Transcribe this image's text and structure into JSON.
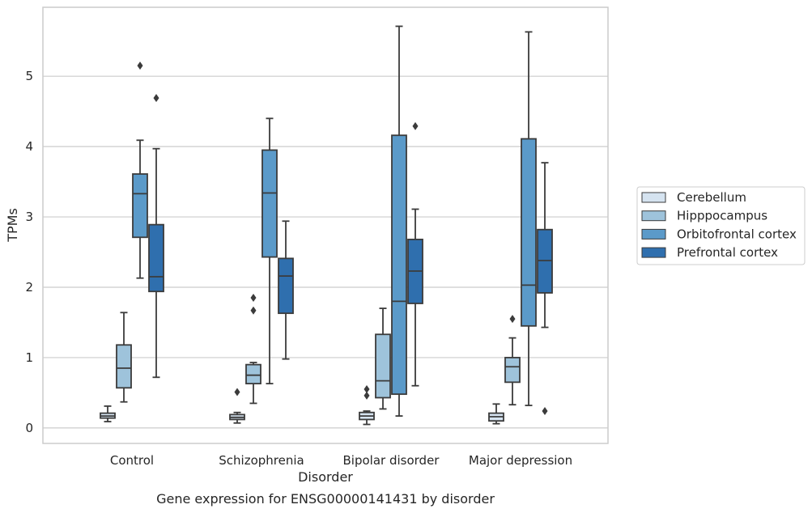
{
  "chart_data": {
    "type": "box",
    "title": "",
    "caption": "Gene expression for ENSG00000141431 by disorder",
    "xlabel": "Disorder",
    "ylabel": "TPMs",
    "ylim": [
      -0.22,
      5.98
    ],
    "yticks": [
      0,
      1,
      2,
      3,
      4,
      5
    ],
    "grid": "horizontal",
    "legend_position": "right",
    "categories": [
      "Control",
      "Schizophrenia",
      "Bipolar disorder",
      "Major depression"
    ],
    "series": [
      {
        "name": "Cerebellum",
        "color": "#d5e3f0",
        "boxes": [
          {
            "whislo": 0.09,
            "q1": 0.14,
            "med": 0.17,
            "q3": 0.21,
            "whishi": 0.31,
            "fliers": []
          },
          {
            "whislo": 0.07,
            "q1": 0.12,
            "med": 0.15,
            "q3": 0.19,
            "whishi": 0.22,
            "fliers": [
              0.51
            ]
          },
          {
            "whislo": 0.05,
            "q1": 0.12,
            "med": 0.17,
            "q3": 0.22,
            "whishi": 0.24,
            "fliers": [
              0.46,
              0.55
            ]
          },
          {
            "whislo": 0.06,
            "q1": 0.1,
            "med": 0.16,
            "q3": 0.21,
            "whishi": 0.34,
            "fliers": []
          }
        ]
      },
      {
        "name": "Hipppocampus",
        "color": "#9ec3db",
        "boxes": [
          {
            "whislo": 0.37,
            "q1": 0.57,
            "med": 0.85,
            "q3": 1.18,
            "whishi": 1.64,
            "fliers": []
          },
          {
            "whislo": 0.35,
            "q1": 0.63,
            "med": 0.75,
            "q3": 0.9,
            "whishi": 0.93,
            "fliers": [
              1.67,
              1.85
            ]
          },
          {
            "whislo": 0.27,
            "q1": 0.43,
            "med": 0.67,
            "q3": 1.33,
            "whishi": 1.7,
            "fliers": []
          },
          {
            "whislo": 0.33,
            "q1": 0.65,
            "med": 0.87,
            "q3": 1.0,
            "whishi": 1.28,
            "fliers": [
              1.55
            ]
          }
        ]
      },
      {
        "name": "Orbitofrontal cortex",
        "color": "#5b9ac9",
        "boxes": [
          {
            "whislo": 2.13,
            "q1": 2.71,
            "med": 3.33,
            "q3": 3.61,
            "whishi": 4.09,
            "fliers": [
              5.15
            ]
          },
          {
            "whislo": 0.63,
            "q1": 2.43,
            "med": 3.34,
            "q3": 3.95,
            "whishi": 4.4,
            "fliers": []
          },
          {
            "whislo": 0.17,
            "q1": 0.48,
            "med": 1.8,
            "q3": 4.16,
            "whishi": 5.71,
            "fliers": []
          },
          {
            "whislo": 0.32,
            "q1": 1.45,
            "med": 2.03,
            "q3": 4.11,
            "whishi": 5.63,
            "fliers": []
          }
        ]
      },
      {
        "name": "Prefrontal cortex",
        "color": "#2f6fae",
        "boxes": [
          {
            "whislo": 0.72,
            "q1": 1.94,
            "med": 2.15,
            "q3": 2.89,
            "whishi": 3.97,
            "fliers": [
              4.69
            ]
          },
          {
            "whislo": 0.98,
            "q1": 1.63,
            "med": 2.16,
            "q3": 2.41,
            "whishi": 2.94,
            "fliers": []
          },
          {
            "whislo": 0.6,
            "q1": 1.77,
            "med": 2.23,
            "q3": 2.68,
            "whishi": 3.11,
            "fliers": [
              4.29
            ]
          },
          {
            "whislo": 1.43,
            "q1": 1.92,
            "med": 2.38,
            "q3": 2.82,
            "whishi": 3.77,
            "fliers": [
              0.24
            ]
          }
        ]
      }
    ]
  }
}
